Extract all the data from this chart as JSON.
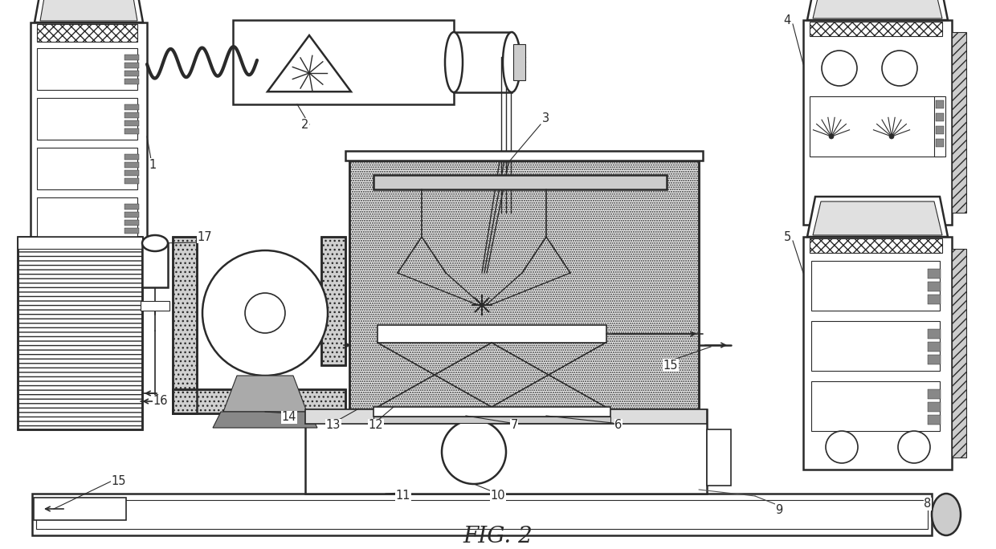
{
  "title": "FIG. 2",
  "title_fontsize": 20,
  "background_color": "#ffffff",
  "line_color": "#2a2a2a",
  "label_fontsize": 10.5
}
